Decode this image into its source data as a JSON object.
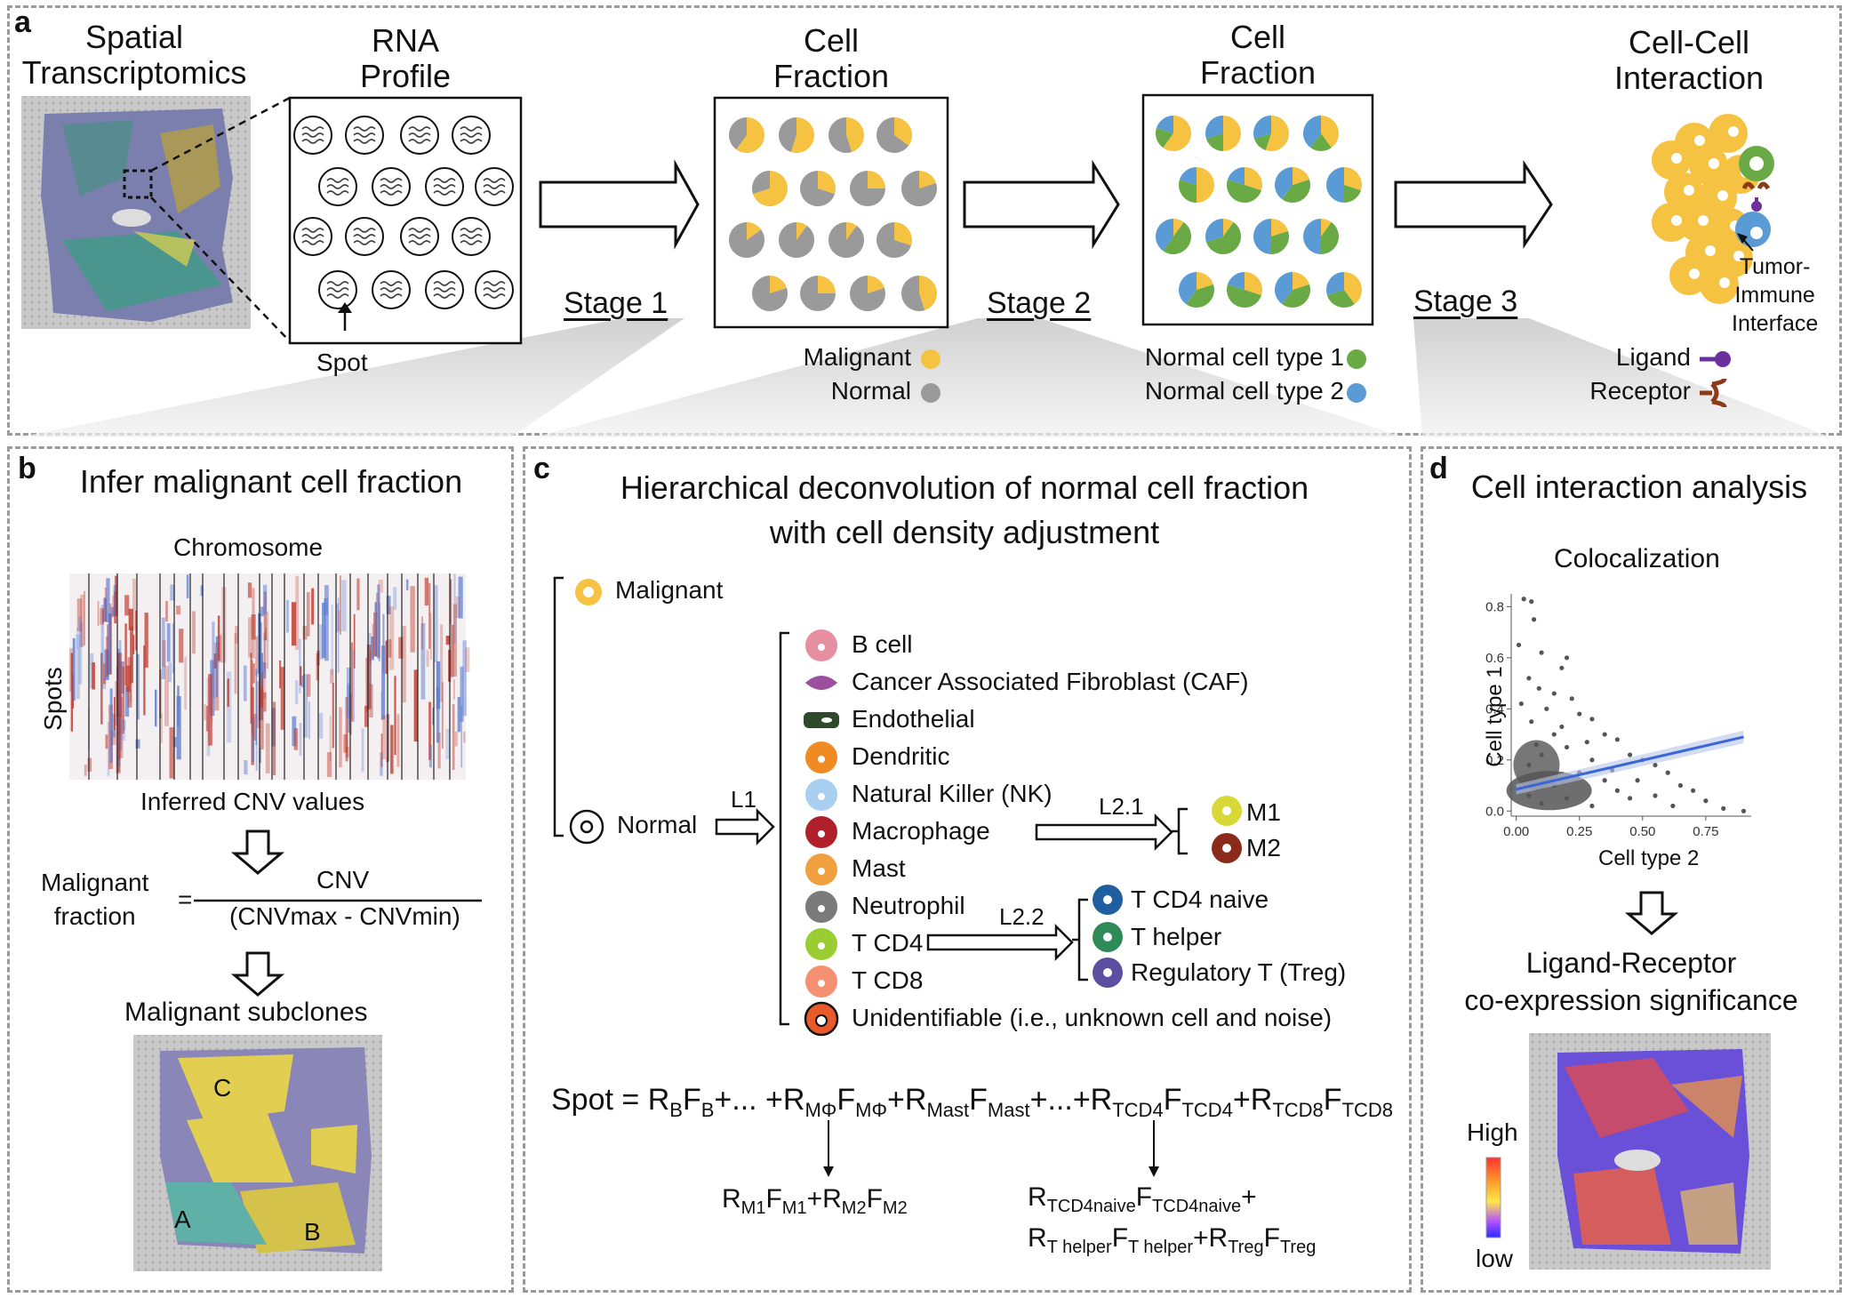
{
  "panel_a": {
    "letter": "a",
    "st_title_l1": "Spatial",
    "st_title_l2": "Transcriptomics",
    "rna_title_l1": "RNA",
    "rna_title_l2": "Profile",
    "spot_label": "Spot",
    "cf1_title_l1": "Cell",
    "cf1_title_l2": "Fraction",
    "cf2_title_l1": "Cell",
    "cf2_title_l2": "Fraction",
    "cci_title_l1": "Cell-Cell",
    "cci_title_l2": "Interaction",
    "stage1": "Stage 1",
    "stage2": "Stage 2",
    "stage3": "Stage 3",
    "legend_malignant": "Malignant",
    "legend_normal": "Normal",
    "legend_type1": "Normal cell type 1",
    "legend_type2": "Normal cell type 2",
    "tumor_immune_l1": "Tumor-",
    "tumor_immune_l2": "Immune",
    "tumor_immune_l3": "Interface",
    "ligand": "Ligand",
    "receptor": "Receptor"
  },
  "panel_b": {
    "letter": "b",
    "title": "Infer malignant cell fraction",
    "chromosome": "Chromosome",
    "spots": "Spots",
    "inferred_cnv": "Inferred CNV values",
    "malignant_l1": "Malignant",
    "malignant_l2": "fraction",
    "equals": "=",
    "numerator": "CNV",
    "denominator": "(CNVmax - CNVmin)",
    "subclones": "Malignant subclones",
    "clone_a": "A",
    "clone_b": "B",
    "clone_c": "C"
  },
  "panel_c": {
    "letter": "c",
    "title_l1": "Hierarchical deconvolution of normal cell fraction",
    "title_l2": "with cell density adjustment",
    "malignant": "Malignant",
    "normal": "Normal",
    "l1": "L1",
    "l21": "L2.1",
    "l22": "L2.2",
    "cell_types": [
      "B cell",
      "Cancer Associated Fibroblast (CAF)",
      "Endothelial",
      "Dendritic",
      "Natural Killer (NK)",
      "Macrophage",
      "Mast",
      "Neutrophil",
      "T CD4",
      "T CD8",
      "Unidentifiable (i.e., unknown cell and noise)"
    ],
    "macrophage_sub": [
      "M1",
      "M2"
    ],
    "tcd4_sub": [
      "T CD4 naive",
      "T helper",
      "Regulatory T (Treg)"
    ],
    "eq_spot": "Spot =",
    "eq_dots": "+...",
    "sub_b": "B",
    "sub_mphi": "MΦ",
    "sub_mast": "Mast",
    "sub_tcd4": "TCD4",
    "sub_tcd8": "TCD8",
    "sub_m1": "M1",
    "sub_m2": "M2",
    "sub_tcd4naive": "TCD4naive",
    "sub_thelper": "T helper",
    "sub_treg": "Treg"
  },
  "panel_d": {
    "letter": "d",
    "title": "Cell interaction analysis",
    "colocalization": "Colocalization",
    "ylabel": "Cell type 1",
    "xlabel": "Cell type 2",
    "lr_l1": "Ligand-Receptor",
    "lr_l2": "co-expression significance",
    "high": "High",
    "low": "low"
  },
  "chart_data": {
    "type": "scatter",
    "xlabel": "Cell type 2",
    "ylabel": "Cell type 1",
    "x_ticks": [
      "0.00",
      "0.25",
      "0.50",
      "0.75"
    ],
    "y_ticks": [
      "0.0",
      "0.2",
      "0.4",
      "0.6",
      "0.8"
    ],
    "xlim": [
      -0.02,
      0.93
    ],
    "ylim": [
      -0.02,
      0.85
    ],
    "trend_line": {
      "x": [
        0.0,
        0.9
      ],
      "y": [
        0.085,
        0.29
      ]
    },
    "points": [
      [
        0.03,
        0.83
      ],
      [
        0.06,
        0.82
      ],
      [
        0.07,
        0.75
      ],
      [
        0.01,
        0.65
      ],
      [
        0.1,
        0.62
      ],
      [
        0.2,
        0.6
      ],
      [
        0.18,
        0.56
      ],
      [
        0.05,
        0.52
      ],
      [
        0.09,
        0.48
      ],
      [
        0.15,
        0.46
      ],
      [
        0.22,
        0.44
      ],
      [
        0.02,
        0.42
      ],
      [
        0.12,
        0.4
      ],
      [
        0.25,
        0.38
      ],
      [
        0.3,
        0.36
      ],
      [
        0.06,
        0.35
      ],
      [
        0.18,
        0.33
      ],
      [
        0.35,
        0.3
      ],
      [
        0.4,
        0.28
      ],
      [
        0.28,
        0.27
      ],
      [
        0.08,
        0.26
      ],
      [
        0.45,
        0.22
      ],
      [
        0.5,
        0.2
      ],
      [
        0.55,
        0.18
      ],
      [
        0.6,
        0.15
      ],
      [
        0.48,
        0.12
      ],
      [
        0.65,
        0.1
      ],
      [
        0.7,
        0.08
      ],
      [
        0.75,
        0.04
      ],
      [
        0.62,
        0.02
      ],
      [
        0.9,
        0.0
      ],
      [
        0.82,
        0.01
      ],
      [
        0.15,
        0.3
      ],
      [
        0.2,
        0.25
      ],
      [
        0.1,
        0.22
      ],
      [
        0.3,
        0.2
      ],
      [
        0.05,
        0.18
      ],
      [
        0.25,
        0.15
      ],
      [
        0.35,
        0.12
      ],
      [
        0.15,
        0.1
      ],
      [
        0.4,
        0.08
      ],
      [
        0.2,
        0.05
      ],
      [
        0.1,
        0.03
      ],
      [
        0.3,
        0.02
      ],
      [
        0.05,
        0.06
      ],
      [
        0.45,
        0.05
      ],
      [
        0.55,
        0.06
      ],
      [
        0.38,
        0.16
      ]
    ]
  }
}
